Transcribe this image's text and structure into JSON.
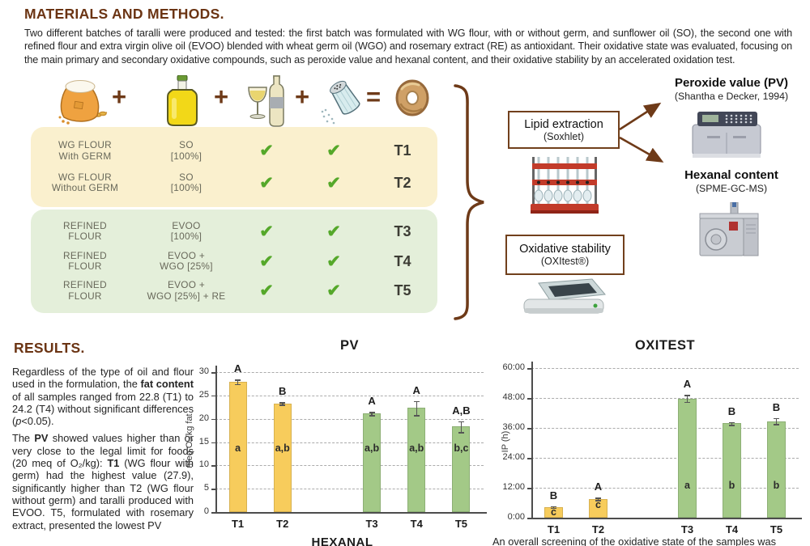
{
  "colors": {
    "accent_brown": "#6e3a18",
    "heading_brown": "#6b3413",
    "bar_yellow": "#f7cc5c",
    "bar_green": "#a3c987",
    "panel_cream": "#faf0ce",
    "panel_green": "#e4efda",
    "check_green": "#55a82a"
  },
  "materials": {
    "heading": "MATERIALS AND METHODS.",
    "intro": "Two different batches of taralli were produced and tested: the first batch was formulated with WG flour, with or without germ, and sunflower oil (SO), the second one with refined flour and extra virgin olive oil (EVOO) blended with wheat germ oil (WGO) and rosemary extract (RE) as antioxidant. Their oxidative state was evaluated, focusing on the main primary and secondary oxidative compounds, such as peroxide value and hexanal content, and their oxidative stability by an accelerated oxidation test.",
    "equation": {
      "plus": "+",
      "equals": "="
    },
    "table_rows": [
      {
        "group": "wg",
        "flour1": "WG FLOUR",
        "flour2": "With GERM",
        "oil1": "SO",
        "oil2": "[100%]",
        "check": "✔",
        "sample": "T1"
      },
      {
        "group": "wg",
        "flour1": "WG FLOUR",
        "flour2": "Without GERM",
        "oil1": "SO",
        "oil2": "[100%]",
        "check": "✔",
        "sample": "T2"
      },
      {
        "group": "refined",
        "flour1": "REFINED",
        "flour2": "FLOUR",
        "oil1": "EVOO",
        "oil2": "[100%]",
        "check": "✔",
        "sample": "T3"
      },
      {
        "group": "refined",
        "flour1": "REFINED",
        "flour2": "FLOUR",
        "oil1": "EVOO +",
        "oil2": "WGO [25%]",
        "check": "✔",
        "sample": "T4"
      },
      {
        "group": "refined",
        "flour1": "REFINED",
        "flour2": "FLOUR",
        "oil1": "EVOO +",
        "oil2": "WGO [25%] + RE",
        "check": "✔",
        "sample": "T5"
      }
    ],
    "flow": {
      "lipid_box_title": "Lipid extraction",
      "lipid_box_sub": "(Soxhlet)",
      "oxidative_box_title": "Oxidative stability",
      "oxidative_box_sub": "(OXItest®)",
      "peroxide_title": "Peroxide value (PV)",
      "peroxide_ref": "(Shantha e Decker, 1994)",
      "hexanal_title": "Hexanal content",
      "hexanal_ref": "(SPME-GC-MS)"
    }
  },
  "results": {
    "heading": "RESULTS.",
    "paragraph1_runs": [
      {
        "t": "Regardless of the type of oil and flour used in the formulation, the "
      },
      {
        "t": "fat content",
        "b": true
      },
      {
        "t": " of all samples ranged from 22.8 (T1) to 24.2 (T4) without significant differences ("
      },
      {
        "t": "p",
        "i": true
      },
      {
        "t": "<0.05)."
      }
    ],
    "paragraph2_runs": [
      {
        "t": "The "
      },
      {
        "t": "PV",
        "b": true
      },
      {
        "t": " showed values higher than or very close to the legal limit for foods (20 meq of O₂/kg): "
      },
      {
        "t": "T1",
        "b": true
      },
      {
        "t": " (WG flour with germ) had the highest value (27.9), significantly higher than T2 (WG flour without germ) and taralli produced with EVOO. T5, formulated with rosemary extract, presented the lowest PV"
      }
    ],
    "hexanal_section_title": "HEXANAL",
    "oxitest_caption_partial": "An overall screening of the oxidative state of the samples was"
  },
  "chart_data": [
    {
      "type": "bar",
      "title": "PV",
      "ylabel": "meq O₂/kg fat",
      "xlabel": "",
      "ylim": [
        0,
        30
      ],
      "yticks": [
        0,
        5,
        10,
        15,
        20,
        25,
        30
      ],
      "ytick_labels": [
        "0",
        "5",
        "10",
        "15",
        "20",
        "25",
        "30"
      ],
      "grid": "dashed",
      "legend": null,
      "categories": [
        "T1",
        "T2",
        "T3",
        "T4",
        "T5"
      ],
      "total_slots": 6,
      "slots": [
        0,
        1,
        3,
        4,
        5
      ],
      "bars": [
        {
          "category": "T1",
          "value": 27.9,
          "error": 0.5,
          "letter_upper": "A",
          "letter_inner": "a",
          "color": "#f7cc5c",
          "inner_y": 13.5
        },
        {
          "category": "T2",
          "value": 23.3,
          "error": 0.25,
          "letter_upper": "B",
          "letter_inner": "a,b",
          "color": "#f7cc5c",
          "inner_y": 13.5
        },
        {
          "category": "T3",
          "value": 21.1,
          "error": 0.35,
          "letter_upper": "A",
          "letter_inner": "a,b",
          "color": "#a3c987",
          "inner_y": 13.5
        },
        {
          "category": "T4",
          "value": 22.3,
          "error": 1.5,
          "letter_upper": "A",
          "letter_inner": "a,b",
          "color": "#a3c987",
          "inner_y": 13.5
        },
        {
          "category": "T5",
          "value": 18.3,
          "error": 1.2,
          "letter_upper": "A,B",
          "letter_inner": "b,c",
          "color": "#a3c987",
          "inner_y": 13.5
        }
      ]
    },
    {
      "type": "bar",
      "title": "OXITEST",
      "ylabel": "IP (h)",
      "xlabel": "",
      "ylim": [
        0,
        60
      ],
      "yticks": [
        0,
        12,
        24,
        36,
        48,
        60
      ],
      "ytick_labels": [
        "0:00",
        "12:00",
        "24:00",
        "36:00",
        "48:00",
        "60:00"
      ],
      "grid": "dashed",
      "legend": null,
      "categories": [
        "T1",
        "T2",
        "T3",
        "T4",
        "T5"
      ],
      "total_slots": 6,
      "slots": [
        0,
        1,
        3,
        4,
        5
      ],
      "bars": [
        {
          "category": "T1",
          "value": 4.3,
          "error": 0.4,
          "letter_upper": "B",
          "letter_inner": "c",
          "color": "#f7cc5c",
          "inner_y": 1.9
        },
        {
          "category": "T2",
          "value": 7.5,
          "error": 0.5,
          "letter_upper": "A",
          "letter_inner": "c",
          "color": "#f7cc5c",
          "inner_y": 4.8
        },
        {
          "category": "T3",
          "value": 47.8,
          "error": 1.4,
          "letter_upper": "A",
          "letter_inner": "a",
          "color": "#a3c987",
          "inner_y": 12.5
        },
        {
          "category": "T4",
          "value": 37.8,
          "error": 0.6,
          "letter_upper": "B",
          "letter_inner": "b",
          "color": "#a3c987",
          "inner_y": 12.5
        },
        {
          "category": "T5",
          "value": 38.7,
          "error": 1.2,
          "letter_upper": "B",
          "letter_inner": "b",
          "color": "#a3c987",
          "inner_y": 12.5
        }
      ]
    }
  ]
}
